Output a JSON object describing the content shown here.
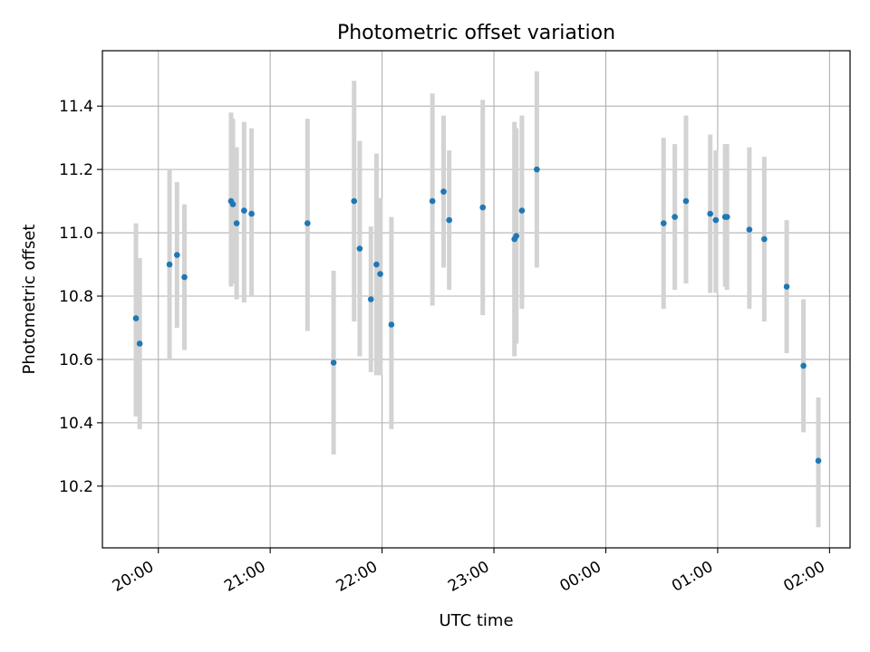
{
  "chart_data": {
    "type": "scatter",
    "title": "Photometric offset variation",
    "xlabel": "UTC time",
    "ylabel": "Photometric offset",
    "xlim": [
      "19:30",
      "02:11"
    ],
    "ylim": [
      10.005,
      11.575
    ],
    "grid": true,
    "x_ticks": [
      "20:00",
      "21:00",
      "22:00",
      "23:00",
      "00:00",
      "01:00",
      "02:00"
    ],
    "y_ticks": [
      "10.2",
      "10.4",
      "10.6",
      "10.8",
      "11.0",
      "11.2",
      "11.4"
    ],
    "point_color": "#1f77b4",
    "errorbar_color": "#d3d3d3",
    "series": [
      {
        "points": [
          {
            "x": "19:48",
            "y": 10.73,
            "yerr": [
              10.42,
              11.03
            ]
          },
          {
            "x": "19:50",
            "y": 10.65,
            "yerr": [
              10.38,
              10.92
            ]
          },
          {
            "x": "20:06",
            "y": 10.9,
            "yerr": [
              10.6,
              11.2
            ]
          },
          {
            "x": "20:10",
            "y": 10.93,
            "yerr": [
              10.7,
              11.16
            ]
          },
          {
            "x": "20:14",
            "y": 10.86,
            "yerr": [
              10.63,
              11.09
            ]
          },
          {
            "x": "20:39",
            "y": 11.1,
            "yerr": [
              10.83,
              11.38
            ]
          },
          {
            "x": "20:40",
            "y": 11.09,
            "yerr": [
              10.84,
              11.36
            ]
          },
          {
            "x": "20:42",
            "y": 11.03,
            "yerr": [
              10.79,
              11.27
            ]
          },
          {
            "x": "20:46",
            "y": 11.07,
            "yerr": [
              10.78,
              11.35
            ]
          },
          {
            "x": "20:50",
            "y": 11.06,
            "yerr": [
              10.8,
              11.33
            ]
          },
          {
            "x": "21:20",
            "y": 11.03,
            "yerr": [
              10.69,
              11.36
            ]
          },
          {
            "x": "21:34",
            "y": 10.59,
            "yerr": [
              10.3,
              10.88
            ]
          },
          {
            "x": "21:45",
            "y": 11.1,
            "yerr": [
              10.72,
              11.48
            ]
          },
          {
            "x": "21:48",
            "y": 10.95,
            "yerr": [
              10.61,
              11.29
            ]
          },
          {
            "x": "21:54",
            "y": 10.79,
            "yerr": [
              10.56,
              11.02
            ]
          },
          {
            "x": "21:57",
            "y": 10.9,
            "yerr": [
              10.55,
              11.25
            ]
          },
          {
            "x": "21:59",
            "y": 10.87,
            "yerr": [
              10.55,
              11.11
            ]
          },
          {
            "x": "22:05",
            "y": 10.71,
            "yerr": [
              10.38,
              11.05
            ]
          },
          {
            "x": "22:27",
            "y": 11.1,
            "yerr": [
              10.77,
              11.44
            ]
          },
          {
            "x": "22:33",
            "y": 11.13,
            "yerr": [
              10.89,
              11.37
            ]
          },
          {
            "x": "22:36",
            "y": 11.04,
            "yerr": [
              10.82,
              11.26
            ]
          },
          {
            "x": "22:54",
            "y": 11.08,
            "yerr": [
              10.74,
              11.42
            ]
          },
          {
            "x": "23:11",
            "y": 10.98,
            "yerr": [
              10.61,
              11.35
            ]
          },
          {
            "x": "23:12",
            "y": 10.99,
            "yerr": [
              10.65,
              11.33
            ]
          },
          {
            "x": "23:15",
            "y": 11.07,
            "yerr": [
              10.76,
              11.37
            ]
          },
          {
            "x": "23:23",
            "y": 11.2,
            "yerr": [
              10.89,
              11.51
            ]
          },
          {
            "x": "00:31",
            "y": 11.03,
            "yerr": [
              10.76,
              11.3
            ]
          },
          {
            "x": "00:37",
            "y": 11.05,
            "yerr": [
              10.82,
              11.28
            ]
          },
          {
            "x": "00:43",
            "y": 11.1,
            "yerr": [
              10.84,
              11.37
            ]
          },
          {
            "x": "00:56",
            "y": 11.06,
            "yerr": [
              10.81,
              11.31
            ]
          },
          {
            "x": "00:59",
            "y": 11.04,
            "yerr": [
              10.81,
              11.26
            ]
          },
          {
            "x": "01:04",
            "y": 11.05,
            "yerr": [
              10.83,
              11.28
            ]
          },
          {
            "x": "01:05",
            "y": 11.05,
            "yerr": [
              10.82,
              11.28
            ]
          },
          {
            "x": "01:17",
            "y": 11.01,
            "yerr": [
              10.76,
              11.27
            ]
          },
          {
            "x": "01:25",
            "y": 10.98,
            "yerr": [
              10.72,
              11.24
            ]
          },
          {
            "x": "01:37",
            "y": 10.83,
            "yerr": [
              10.62,
              11.04
            ]
          },
          {
            "x": "01:46",
            "y": 10.58,
            "yerr": [
              10.37,
              10.79
            ]
          },
          {
            "x": "01:54",
            "y": 10.28,
            "yerr": [
              10.07,
              10.48
            ]
          }
        ]
      }
    ]
  }
}
